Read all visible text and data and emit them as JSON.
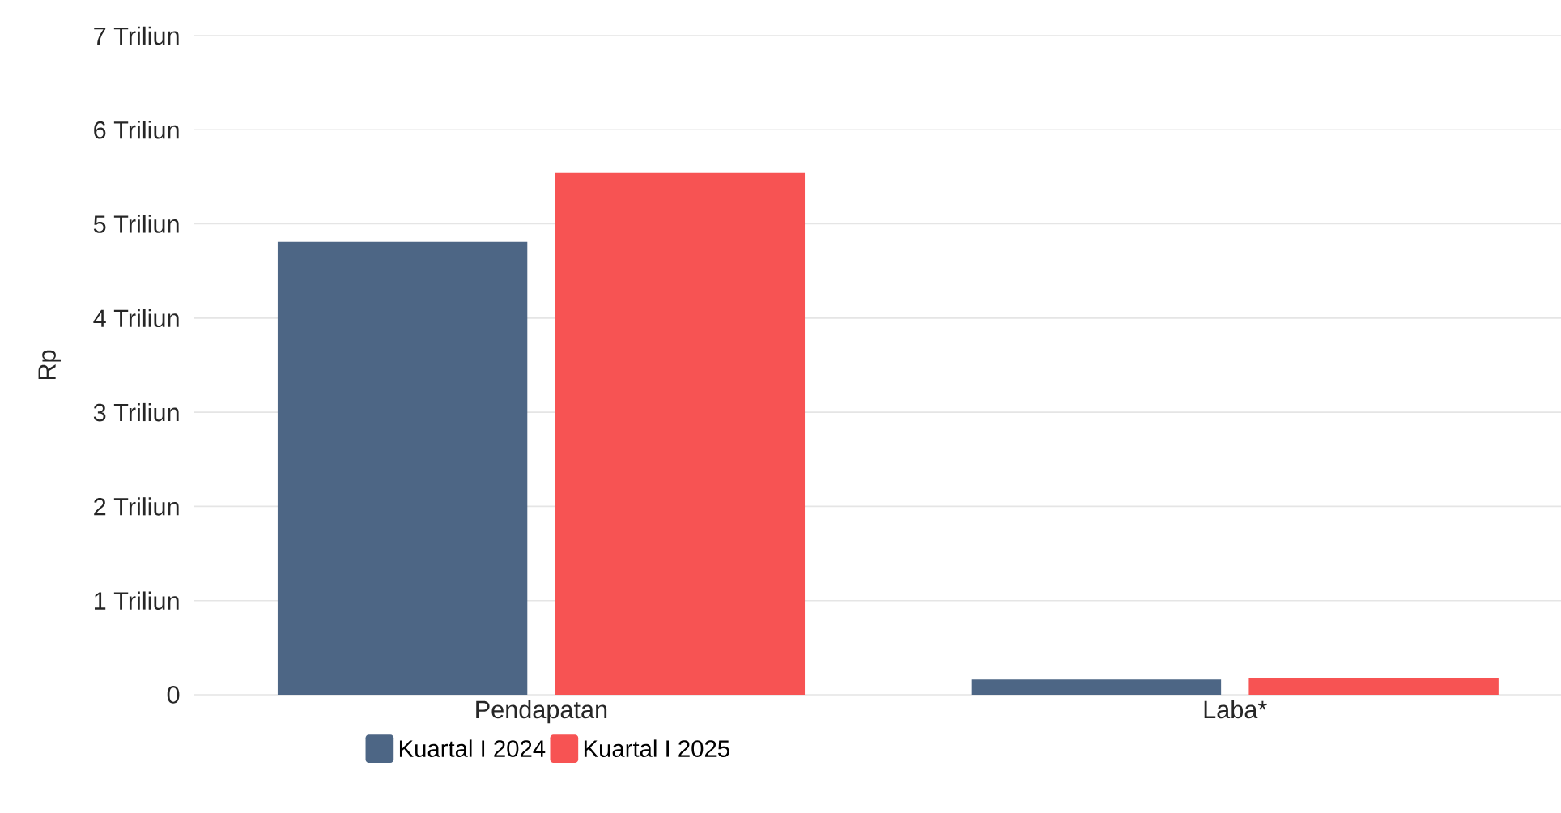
{
  "chart_data": {
    "type": "bar",
    "ylabel": "Rp",
    "categories": [
      "Pendapatan",
      "Laba*"
    ],
    "series": [
      {
        "name": "Kuartal I 2024",
        "color": "#4d6685",
        "values": [
          4.81,
          0.16
        ]
      },
      {
        "name": "Kuartal I 2025",
        "color": "#f75353",
        "values": [
          5.54,
          0.18
        ]
      }
    ],
    "ylim": [
      0,
      7
    ],
    "yticks": [
      0,
      {
        "value": 1,
        "label": "1 Triliun"
      },
      {
        "value": 2,
        "label": "2 Triliun"
      },
      {
        "value": 3,
        "label": "3 Triliun"
      },
      {
        "value": 4,
        "label": "4 Triliun"
      },
      {
        "value": 5,
        "label": "5 Triliun"
      },
      {
        "value": 6,
        "label": "6 Triliun"
      },
      {
        "value": 7,
        "label": "7 Triliun"
      }
    ],
    "grid": "y",
    "legend": "bottom"
  }
}
